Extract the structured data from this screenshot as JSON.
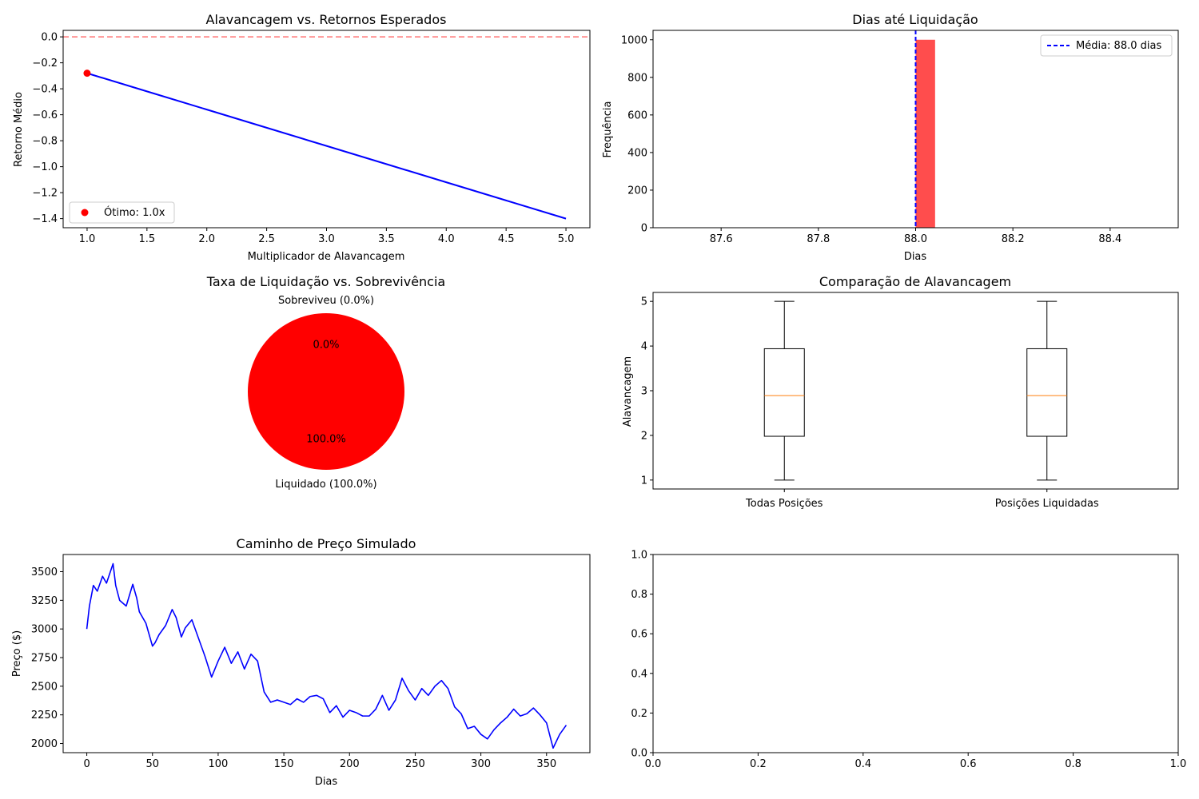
{
  "chart_data": [
    {
      "type": "line",
      "title": "Alavancagem vs. Retornos Esperados",
      "xlabel": "Multiplicador de Alavancagem",
      "ylabel": "Retorno Médio",
      "xlim": [
        0.8,
        5.2
      ],
      "ylim": [
        -1.47,
        0.05
      ],
      "xticks": [
        1.0,
        1.5,
        2.0,
        2.5,
        3.0,
        3.5,
        4.0,
        4.5,
        5.0
      ],
      "xtick_labels": [
        "1.0",
        "1.5",
        "2.0",
        "2.5",
        "3.0",
        "3.5",
        "4.0",
        "4.5",
        "5.0"
      ],
      "yticks": [
        0.0,
        -0.2,
        -0.4,
        -0.6,
        -0.8,
        -1.0,
        -1.2,
        -1.4
      ],
      "ytick_labels": [
        "0.0",
        "−0.2",
        "−0.4",
        "−0.6",
        "−0.8",
        "−1.0",
        "−1.2",
        "−1.4"
      ],
      "series": [
        {
          "x": [
            1.0,
            1.5,
            2.0,
            2.5,
            3.0,
            3.5,
            4.0,
            4.5,
            5.0
          ],
          "y": [
            -0.28,
            -0.42,
            -0.56,
            -0.7,
            -0.84,
            -0.98,
            -1.12,
            -1.26,
            -1.4
          ],
          "color": "#0000ff"
        }
      ],
      "marker": {
        "x": 1.0,
        "y": -0.28,
        "color": "#ff0000"
      },
      "hline": {
        "y": 0.0,
        "color": "#ff0000",
        "style": "dashed"
      },
      "legend": {
        "placement": "lower-left",
        "entries": [
          "Ótimo: 1.0x"
        ]
      }
    },
    {
      "type": "bar",
      "title": "Dias até Liquidação",
      "xlabel": "Dias",
      "ylabel": "Frequência",
      "xlim": [
        87.46,
        88.54
      ],
      "ylim": [
        0,
        1050
      ],
      "xticks": [
        87.6,
        87.8,
        88.0,
        88.2,
        88.4
      ],
      "xtick_labels": [
        "87.6",
        "87.8",
        "88.0",
        "88.2",
        "88.4"
      ],
      "yticks": [
        0,
        200,
        400,
        600,
        800,
        1000
      ],
      "ytick_labels": [
        "0",
        "200",
        "400",
        "600",
        "800",
        "1000"
      ],
      "bars": [
        {
          "x0": 88.0,
          "x1": 88.04,
          "value": 1000
        }
      ],
      "bar_color": "#ff4d4d",
      "vline": {
        "x": 88.0,
        "color": "#0000ff",
        "style": "dashed"
      },
      "legend": {
        "placement": "top-right",
        "entries": [
          "Média: 88.0 dias"
        ]
      }
    },
    {
      "type": "pie",
      "title": "Taxa de Liquidação vs. Sobrevivência",
      "slices": [
        {
          "label": "Liquidado (100.0%)",
          "value": 100.0,
          "pct": "100.0%",
          "color": "#ff0000"
        },
        {
          "label": "Sobreviveu (0.0%)",
          "value": 0.0,
          "pct": "0.0%",
          "color": "#00aa00"
        }
      ]
    },
    {
      "type": "box",
      "title": "Comparação de Alavancagem",
      "ylabel": "Alavancagem",
      "ylim": [
        0.8,
        5.2
      ],
      "yticks": [
        1,
        2,
        3,
        4,
        5
      ],
      "ytick_labels": [
        "1",
        "2",
        "3",
        "4",
        "5"
      ],
      "categories": [
        "Todas Posições",
        "Posições Liquidadas"
      ],
      "boxes": [
        {
          "min": 1.0,
          "q1": 1.98,
          "median": 2.89,
          "q3": 3.94,
          "max": 5.0
        },
        {
          "min": 1.0,
          "q1": 1.98,
          "median": 2.89,
          "q3": 3.94,
          "max": 5.0
        }
      ]
    },
    {
      "type": "line",
      "title": "Caminho de Preço Simulado",
      "xlabel": "Dias",
      "ylabel": "Preço ($)",
      "xlim": [
        -18,
        383
      ],
      "ylim": [
        1920,
        3650
      ],
      "xticks": [
        0,
        50,
        100,
        150,
        200,
        250,
        300,
        350
      ],
      "xtick_labels": [
        "0",
        "50",
        "100",
        "150",
        "200",
        "250",
        "300",
        "350"
      ],
      "yticks": [
        2000,
        2250,
        2500,
        2750,
        3000,
        3250,
        3500
      ],
      "ytick_labels": [
        "2000",
        "2250",
        "2500",
        "2750",
        "3000",
        "3250",
        "3500"
      ],
      "series": [
        {
          "color": "#0000ff",
          "x": [
            0,
            2,
            5,
            8,
            12,
            15,
            20,
            22,
            25,
            30,
            35,
            38,
            40,
            45,
            50,
            52,
            55,
            60,
            65,
            68,
            72,
            75,
            80,
            85,
            90,
            95,
            100,
            105,
            110,
            115,
            120,
            125,
            130,
            135,
            140,
            145,
            150,
            155,
            160,
            165,
            170,
            175,
            180,
            185,
            190,
            195,
            200,
            205,
            210,
            215,
            220,
            225,
            230,
            235,
            240,
            245,
            250,
            255,
            260,
            265,
            270,
            275,
            280,
            285,
            290,
            295,
            300,
            305,
            310,
            315,
            320,
            325,
            330,
            335,
            340,
            345,
            350,
            355,
            360,
            365
          ],
          "y": [
            3000,
            3200,
            3380,
            3330,
            3460,
            3400,
            3570,
            3380,
            3250,
            3200,
            3390,
            3270,
            3150,
            3050,
            2850,
            2880,
            2950,
            3030,
            3170,
            3100,
            2930,
            3010,
            3080,
            2920,
            2760,
            2580,
            2720,
            2840,
            2700,
            2800,
            2650,
            2780,
            2720,
            2450,
            2360,
            2380,
            2360,
            2340,
            2390,
            2360,
            2410,
            2420,
            2390,
            2270,
            2330,
            2230,
            2290,
            2270,
            2240,
            2240,
            2300,
            2420,
            2290,
            2380,
            2570,
            2460,
            2380,
            2480,
            2420,
            2500,
            2550,
            2480,
            2320,
            2260,
            2130,
            2150,
            2080,
            2040,
            2120,
            2180,
            2230,
            2300,
            2240,
            2260,
            2310,
            2250,
            2180,
            1960,
            2080,
            2160
          ]
        }
      ]
    },
    {
      "type": "line",
      "title": "",
      "xlim": [
        0,
        1
      ],
      "ylim": [
        0,
        1
      ],
      "xticks": [
        0.0,
        0.2,
        0.4,
        0.6,
        0.8,
        1.0
      ],
      "xtick_labels": [
        "0.0",
        "0.2",
        "0.4",
        "0.6",
        "0.8",
        "1.0"
      ],
      "yticks": [
        0.0,
        0.2,
        0.4,
        0.6,
        0.8,
        1.0
      ],
      "ytick_labels": [
        "0.0",
        "0.2",
        "0.4",
        "0.6",
        "0.8",
        "1.0"
      ],
      "series": []
    }
  ]
}
